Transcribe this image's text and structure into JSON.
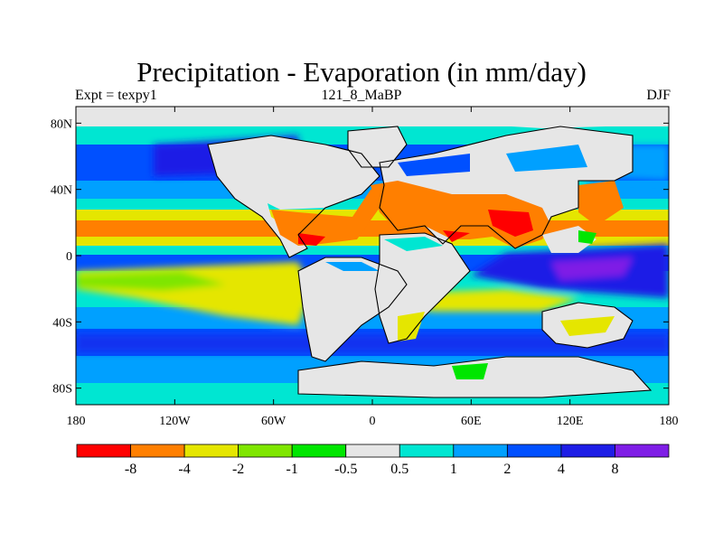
{
  "title": "Precipitation - Evaporation (in mm/day)",
  "subtitle_left": "Expt = texpy1",
  "subtitle_center": "121_8_MaBP",
  "subtitle_right": "DJF",
  "y_ticks": [
    "80N",
    "40N",
    "0",
    "40S",
    "80S"
  ],
  "x_ticks": [
    "180",
    "120W",
    "60W",
    "0",
    "60E",
    "120E",
    "180"
  ],
  "colorbar": {
    "colors": [
      "#ff0000",
      "#ff7f00",
      "#e5e600",
      "#7fe600",
      "#00e600",
      "#e6e6e6",
      "#00e6d2",
      "#00a0ff",
      "#0050ff",
      "#1e1ee6",
      "#7f1ee6"
    ],
    "labels": [
      "-8",
      "-4",
      "-2",
      "-1",
      "-0.5",
      "0.5",
      "1",
      "2",
      "4",
      "8"
    ]
  }
}
